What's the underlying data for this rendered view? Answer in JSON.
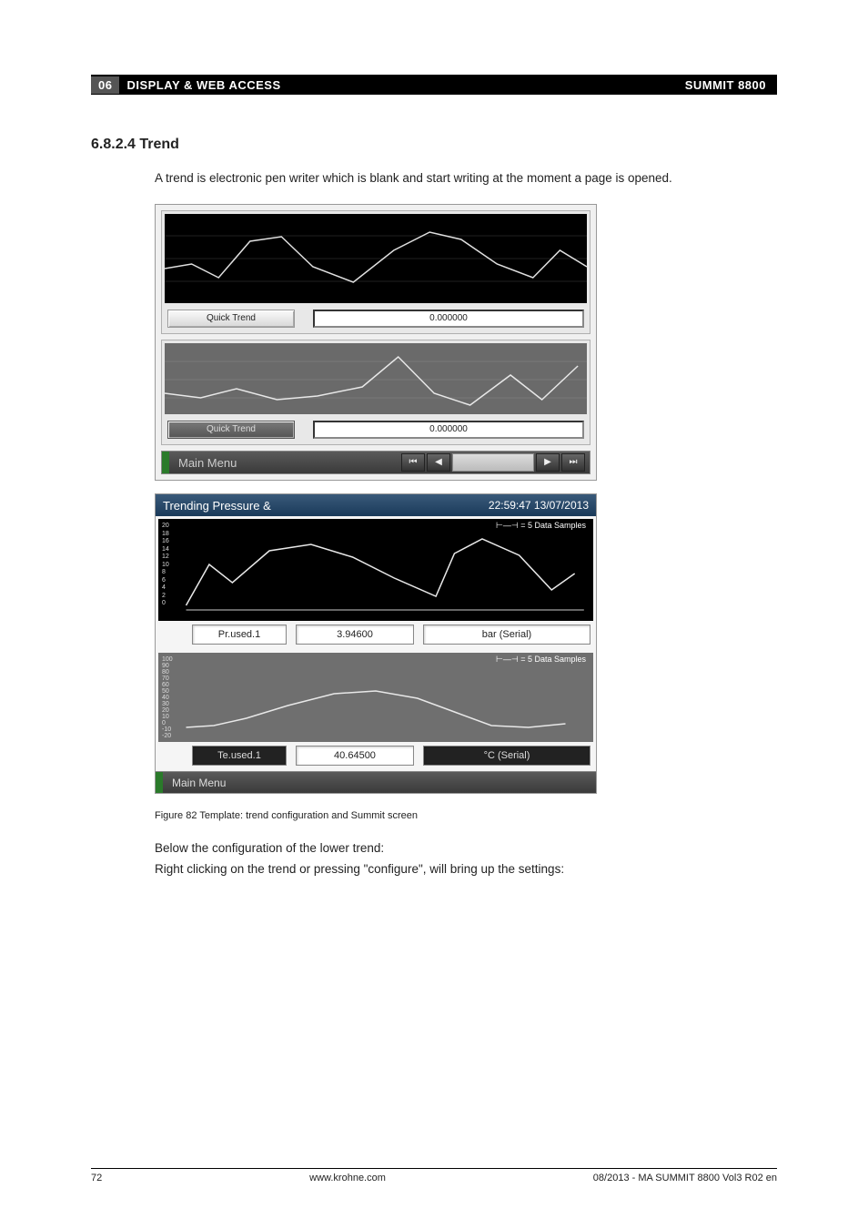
{
  "header": {
    "section_num": "06",
    "title": "DISPLAY & WEB ACCESS",
    "product": "SUMMIT 8800"
  },
  "heading": "6.8.2.4 Trend",
  "intro": "A trend is electronic pen writer which is blank and start writing at the moment a page is opened.",
  "shot1": {
    "panel1": {
      "label": "Quick Trend",
      "value": "0.000000",
      "yticks": [],
      "line_color": "#e0e0e0",
      "points": [
        [
          0,
          60
        ],
        [
          30,
          55
        ],
        [
          60,
          70
        ],
        [
          95,
          30
        ],
        [
          130,
          25
        ],
        [
          165,
          58
        ],
        [
          210,
          75
        ],
        [
          255,
          40
        ],
        [
          295,
          20
        ],
        [
          330,
          28
        ],
        [
          370,
          55
        ],
        [
          410,
          70
        ],
        [
          440,
          40
        ],
        [
          470,
          58
        ]
      ],
      "bg": "#000000"
    },
    "panel2": {
      "label": "Quick Trend",
      "value": "0.000000",
      "line_color": "#e8e8e8",
      "points": [
        [
          0,
          55
        ],
        [
          40,
          60
        ],
        [
          80,
          50
        ],
        [
          125,
          62
        ],
        [
          170,
          58
        ],
        [
          220,
          48
        ],
        [
          260,
          15
        ],
        [
          300,
          55
        ],
        [
          340,
          68
        ],
        [
          385,
          35
        ],
        [
          420,
          62
        ],
        [
          460,
          25
        ]
      ],
      "bg": "#6a6a6a"
    },
    "menu": "Main  Menu",
    "nav": [
      "⏮",
      "◀",
      "",
      "▶",
      "⏭"
    ]
  },
  "shot2": {
    "title": "Trending Pressure &",
    "timestamp": "22:59:47 13/07/2013",
    "chart1": {
      "legend": "⊢—⊣ = 5 Data Samples",
      "yticks": [
        "20",
        "18",
        "16",
        "14",
        "12",
        "10",
        "8",
        "6",
        "4",
        "2",
        "0"
      ],
      "label": "Pr.used.1",
      "value": "3.94600",
      "unit": "bar (Serial)",
      "line_color": "#e8e8e8",
      "points": [
        [
          30,
          95
        ],
        [
          55,
          50
        ],
        [
          80,
          70
        ],
        [
          120,
          35
        ],
        [
          165,
          28
        ],
        [
          210,
          42
        ],
        [
          255,
          65
        ],
        [
          300,
          85
        ],
        [
          320,
          38
        ],
        [
          350,
          22
        ],
        [
          390,
          40
        ],
        [
          425,
          78
        ],
        [
          450,
          60
        ]
      ],
      "bg": "#000000"
    },
    "chart2": {
      "legend": "⊢—⊣ = 5 Data Samples",
      "yticks": [
        "100",
        "90",
        "80",
        "70",
        "60",
        "50",
        "40",
        "30",
        "20",
        "10",
        "0",
        "-10",
        "-20"
      ],
      "label": "Te.used.1",
      "value": "40.64500",
      "unit": "°C (Serial)",
      "line_color": "#e8e8e8",
      "points": [
        [
          30,
          82
        ],
        [
          60,
          80
        ],
        [
          95,
          72
        ],
        [
          140,
          58
        ],
        [
          190,
          45
        ],
        [
          235,
          42
        ],
        [
          280,
          50
        ],
        [
          320,
          65
        ],
        [
          360,
          80
        ],
        [
          400,
          82
        ],
        [
          440,
          78
        ]
      ],
      "bg": "#6f6f6f"
    },
    "menu": "Main Menu"
  },
  "figure_caption": "Figure 82    Template: trend configuration and Summit screen",
  "below1": "Below the configuration of the lower trend:",
  "below2": "Right clicking on the trend or pressing \"configure\", will bring up the settings:",
  "footer": {
    "page": "72",
    "url": "www.krohne.com",
    "doc": "08/2013 - MA SUMMIT 8800 Vol3 R02 en"
  },
  "colors": {
    "header_bg": "#000000",
    "accent": "#2a7a2a",
    "titlebar": "#2a4a6a"
  }
}
